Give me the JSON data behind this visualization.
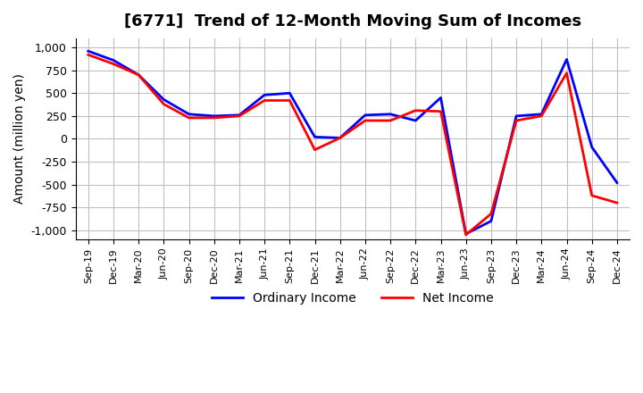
{
  "title": "[6771]  Trend of 12-Month Moving Sum of Incomes",
  "ylabel": "Amount (million yen)",
  "ylim": [
    -1100,
    1100
  ],
  "yticks": [
    -1000,
    -750,
    -500,
    -250,
    0,
    250,
    500,
    750,
    1000
  ],
  "background_color": "#ffffff",
  "grid_color": "#c0c0c0",
  "x_labels": [
    "Sep-19",
    "Dec-19",
    "Mar-20",
    "Jun-20",
    "Sep-20",
    "Dec-20",
    "Mar-21",
    "Jun-21",
    "Sep-21",
    "Dec-21",
    "Mar-22",
    "Jun-22",
    "Sep-22",
    "Dec-22",
    "Mar-23",
    "Jun-23",
    "Sep-23",
    "Dec-23",
    "Mar-24",
    "Jun-24",
    "Sep-24",
    "Dec-24"
  ],
  "ordinary_income": [
    960,
    860,
    700,
    430,
    270,
    250,
    260,
    480,
    500,
    20,
    10,
    260,
    270,
    200,
    450,
    -1040,
    -900,
    250,
    270,
    870,
    -90,
    -480
  ],
  "net_income": [
    920,
    820,
    700,
    380,
    230,
    230,
    250,
    420,
    420,
    -120,
    10,
    200,
    200,
    310,
    300,
    -1050,
    -820,
    200,
    250,
    720,
    -620,
    -700
  ],
  "ordinary_color": "#0000ff",
  "net_color": "#ff0000",
  "title_fontsize": 13,
  "axis_fontsize": 10,
  "legend_fontsize": 10
}
